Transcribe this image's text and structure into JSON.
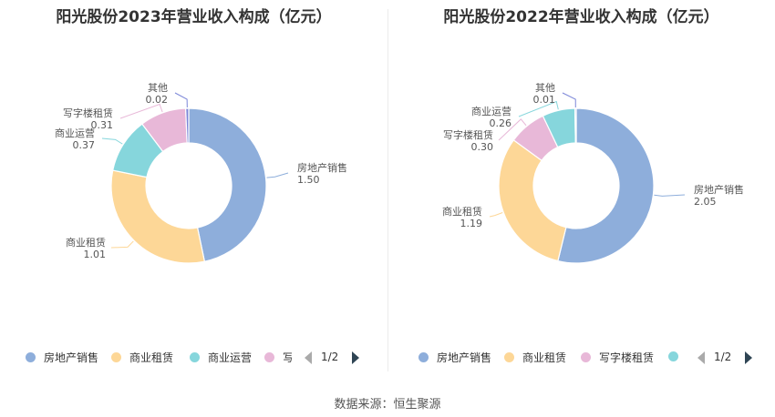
{
  "source": "数据来源：恒生聚源",
  "chart_data": [
    {
      "type": "pie",
      "title": "阳光股份2023年营业收入构成（亿元）",
      "slices": [
        {
          "name": "房地产销售",
          "value": 1.5,
          "value_label": "1.50",
          "color": "#8eaedb"
        },
        {
          "name": "商业租赁",
          "value": 1.01,
          "value_label": "1.01",
          "color": "#fdd797"
        },
        {
          "name": "商业运营",
          "value": 0.37,
          "value_label": "0.37",
          "color": "#86d6dc"
        },
        {
          "name": "写字楼租赁",
          "value": 0.31,
          "value_label": "0.31",
          "color": "#e8b8d8"
        },
        {
          "name": "其他",
          "value": 0.02,
          "value_label": "0.02",
          "color": "#7b86d8"
        }
      ],
      "legend": {
        "placement": "bottom",
        "items": [
          {
            "label": "房地产销售",
            "color": "#8eaedb"
          },
          {
            "label": "商业租赁",
            "color": "#fdd797"
          },
          {
            "label": "商业运营",
            "color": "#86d6dc"
          },
          {
            "label": "写",
            "color": "#e8b8d8"
          }
        ],
        "page": "1/2"
      }
    },
    {
      "type": "pie",
      "title": "阳光股份2022年营业收入构成（亿元）",
      "slices": [
        {
          "name": "房地产销售",
          "value": 2.05,
          "value_label": "2.05",
          "color": "#8eaedb"
        },
        {
          "name": "商业租赁",
          "value": 1.19,
          "value_label": "1.19",
          "color": "#fdd797"
        },
        {
          "name": "写字楼租赁",
          "value": 0.3,
          "value_label": "0.30",
          "color": "#e8b8d8"
        },
        {
          "name": "商业运营",
          "value": 0.26,
          "value_label": "0.26",
          "color": "#86d6dc"
        },
        {
          "name": "其他",
          "value": 0.01,
          "value_label": "0.01",
          "color": "#7b86d8"
        }
      ],
      "legend": {
        "placement": "bottom",
        "items": [
          {
            "label": "房地产销售",
            "color": "#8eaedb"
          },
          {
            "label": "商业租赁",
            "color": "#fdd797"
          },
          {
            "label": "写字楼租赁",
            "color": "#e8b8d8"
          },
          {
            "label": "",
            "color": "#86d6dc"
          }
        ],
        "page": "1/2"
      }
    }
  ]
}
